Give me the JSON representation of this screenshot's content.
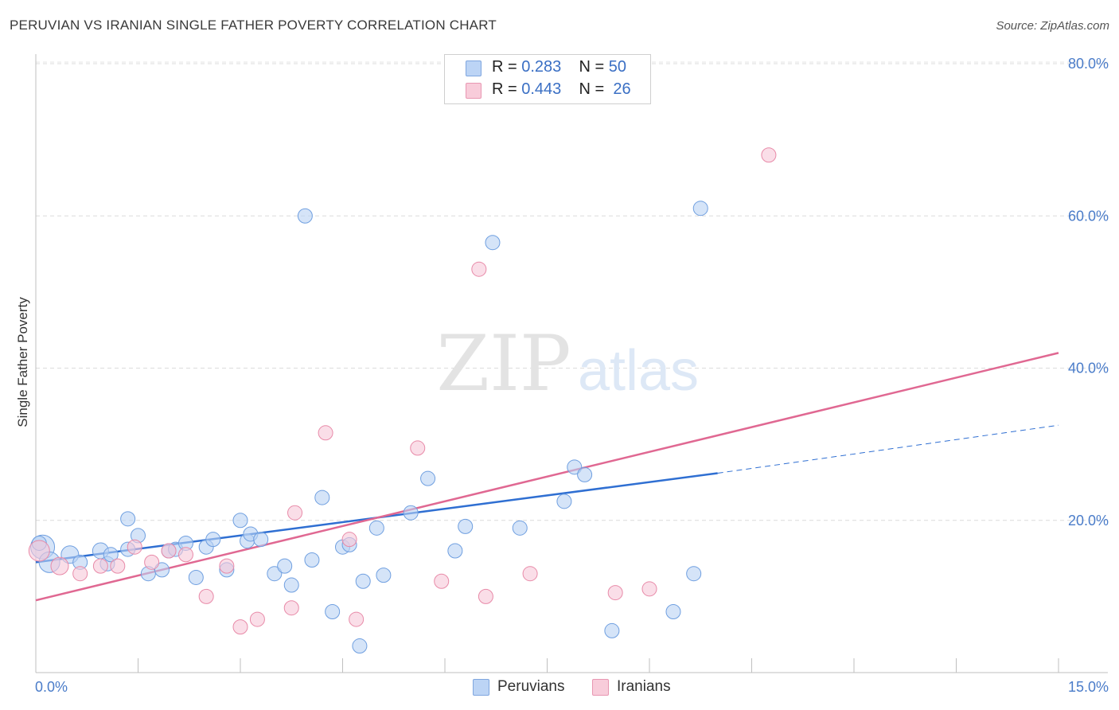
{
  "title": "PERUVIAN VS IRANIAN SINGLE FATHER POVERTY CORRELATION CHART",
  "source": "Source: ZipAtlas.com",
  "watermark": {
    "zip": "ZIP",
    "atlas": "atlas"
  },
  "legend": {
    "rows": [
      {
        "r_label": "R =",
        "r_value": "0.283",
        "n_label": "N =",
        "n_value": "50",
        "color": "#a9c8f0"
      },
      {
        "r_label": "R =",
        "r_value": "0.443",
        "n_label": "N =",
        "n_value": "26",
        "color": "#f5bfd0"
      }
    ]
  },
  "bottom_legend": {
    "peruvians": "Peruvians",
    "iranians": "Iranians"
  },
  "chart_data": {
    "type": "scatter",
    "title": "PERUVIAN VS IRANIAN SINGLE FATHER POVERTY CORRELATION CHART",
    "xlabel": "",
    "ylabel": "Single Father Poverty",
    "xlim": [
      0,
      15
    ],
    "ylim": [
      0,
      80
    ],
    "x_tick_labels": [
      "0.0%",
      "15.0%"
    ],
    "y_ticks": [
      20,
      40,
      60,
      80
    ],
    "y_tick_labels": [
      "20.0%",
      "40.0%",
      "60.0%",
      "80.0%"
    ],
    "grid": "horizontal dashed",
    "legend_position": "top-center",
    "series": [
      {
        "name": "Peruvians",
        "color": "#6f9fe0",
        "fill": "#b9d2f4",
        "trend": {
          "x_start": 0,
          "y_start": 14.5,
          "x_solid_end": 10.0,
          "y_solid_end": 26.2,
          "x_end": 15.0,
          "y_end": 32.5
        },
        "points": [
          [
            0.1,
            16.5,
            15
          ],
          [
            0.2,
            14.5,
            13
          ],
          [
            0.5,
            15.5,
            11
          ],
          [
            0.65,
            14.5,
            9
          ],
          [
            0.95,
            16.0,
            10
          ],
          [
            1.05,
            14.3,
            9
          ],
          [
            1.1,
            15.5,
            9
          ],
          [
            1.35,
            16.2,
            9
          ],
          [
            1.35,
            20.2,
            9
          ],
          [
            1.5,
            18.0,
            9
          ],
          [
            1.65,
            13.0,
            9
          ],
          [
            1.85,
            13.5,
            9
          ],
          [
            1.95,
            16.0,
            9
          ],
          [
            2.05,
            16.2,
            9
          ],
          [
            2.2,
            17.0,
            9
          ],
          [
            2.35,
            12.5,
            9
          ],
          [
            2.5,
            16.5,
            9
          ],
          [
            2.6,
            17.5,
            9
          ],
          [
            2.8,
            13.5,
            9
          ],
          [
            3.0,
            20.0,
            9
          ],
          [
            3.1,
            17.3,
            9
          ],
          [
            3.15,
            18.2,
            9
          ],
          [
            3.3,
            17.5,
            9
          ],
          [
            3.5,
            13.0,
            9
          ],
          [
            3.65,
            14.0,
            9
          ],
          [
            3.75,
            11.5,
            9
          ],
          [
            3.95,
            60.0,
            9
          ],
          [
            4.05,
            14.8,
            9
          ],
          [
            4.2,
            23.0,
            9
          ],
          [
            4.35,
            8.0,
            9
          ],
          [
            4.5,
            16.5,
            9
          ],
          [
            4.6,
            16.8,
            9
          ],
          [
            4.75,
            3.5,
            9
          ],
          [
            4.8,
            12.0,
            9
          ],
          [
            5.0,
            19.0,
            9
          ],
          [
            5.1,
            12.8,
            9
          ],
          [
            5.5,
            21.0,
            9
          ],
          [
            5.75,
            25.5,
            9
          ],
          [
            6.15,
            16.0,
            9
          ],
          [
            6.3,
            19.2,
            9
          ],
          [
            6.7,
            56.5,
            9
          ],
          [
            7.1,
            19.0,
            9
          ],
          [
            7.75,
            22.5,
            9
          ],
          [
            7.9,
            27.0,
            9
          ],
          [
            8.05,
            26.0,
            9
          ],
          [
            8.45,
            5.5,
            9
          ],
          [
            9.35,
            8.0,
            9
          ],
          [
            9.65,
            13.0,
            9
          ],
          [
            9.75,
            61.0,
            9
          ],
          [
            0.05,
            17.0,
            9
          ]
        ]
      },
      {
        "name": "Iranians",
        "color": "#e88aa8",
        "fill": "#f7c8d8",
        "trend": {
          "x_start": 0,
          "y_start": 9.5,
          "x_end": 15.0,
          "y_end": 42.0
        },
        "points": [
          [
            0.05,
            16.0,
            13
          ],
          [
            0.35,
            14.0,
            11
          ],
          [
            0.65,
            13.0,
            9
          ],
          [
            0.95,
            14.0,
            9
          ],
          [
            1.2,
            14.0,
            9
          ],
          [
            1.45,
            16.5,
            9
          ],
          [
            1.7,
            14.5,
            9
          ],
          [
            1.95,
            16.0,
            9
          ],
          [
            2.2,
            15.5,
            9
          ],
          [
            2.5,
            10.0,
            9
          ],
          [
            2.8,
            14.0,
            9
          ],
          [
            3.0,
            6.0,
            9
          ],
          [
            3.25,
            7.0,
            9
          ],
          [
            3.75,
            8.5,
            9
          ],
          [
            3.8,
            21.0,
            9
          ],
          [
            4.25,
            31.5,
            9
          ],
          [
            4.7,
            7.0,
            9
          ],
          [
            4.6,
            17.5,
            9
          ],
          [
            5.6,
            29.5,
            9
          ],
          [
            5.95,
            12.0,
            9
          ],
          [
            6.5,
            53.0,
            9
          ],
          [
            6.6,
            10.0,
            9
          ],
          [
            7.25,
            13.0,
            9
          ],
          [
            8.5,
            10.5,
            9
          ],
          [
            9.0,
            11.0,
            9
          ],
          [
            10.75,
            68.0,
            9
          ]
        ]
      }
    ]
  }
}
